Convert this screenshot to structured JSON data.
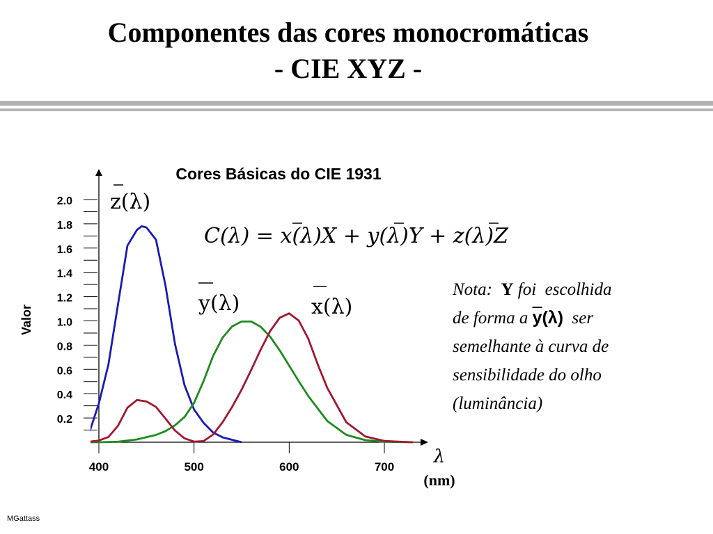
{
  "slide": {
    "title_line1": "Componentes das cores monocromáticas",
    "title_line2": "- CIE XYZ -",
    "footer": "MGattass"
  },
  "formula": "C(λ) = x(λ)X + y(λ)Y + z(λ)Z",
  "note": {
    "prefix": "Nota:",
    "bold_word": "Y",
    "middle": "foi escolhida de forma a",
    "symbol": "y(λ)",
    "rest1": "ser",
    "line3": "semelhante à curva de",
    "line4": "sensibilidade do olho",
    "line5": "(luminância)"
  },
  "chart_data": {
    "type": "line",
    "title": "Cores Básicas do CIE 1931",
    "ylabel": "Valor",
    "xlabel_symbol": "λ",
    "xlabel_unit": "(nm)",
    "x_ticks": [
      400,
      500,
      600,
      700
    ],
    "y_ticks": [
      "0.2",
      "0.4",
      "0.6",
      "0.8",
      "1.0",
      "1.2",
      "1.4",
      "1.6",
      "1.8",
      "2.0"
    ],
    "xlim": [
      390,
      740
    ],
    "ylim": [
      0,
      2.0
    ],
    "series": [
      {
        "name": "z(λ)",
        "color": "#1a1ab8",
        "x": [
          380,
          390,
          400,
          410,
          420,
          430,
          440,
          445,
          450,
          460,
          470,
          480,
          490,
          500,
          510,
          520,
          530,
          540,
          550
        ],
        "y": [
          0.04,
          0.08,
          0.32,
          0.64,
          1.13,
          1.62,
          1.75,
          1.78,
          1.77,
          1.67,
          1.29,
          0.81,
          0.47,
          0.27,
          0.16,
          0.08,
          0.04,
          0.02,
          0.0
        ]
      },
      {
        "name": "y(λ)",
        "color": "#1f8a1f",
        "x": [
          380,
          400,
          420,
          440,
          460,
          470,
          480,
          490,
          500,
          510,
          520,
          530,
          540,
          550,
          560,
          570,
          580,
          590,
          600,
          610,
          620,
          640,
          660,
          680,
          700,
          720,
          730
        ],
        "y": [
          0.0,
          0.0,
          0.004,
          0.023,
          0.06,
          0.091,
          0.139,
          0.208,
          0.323,
          0.503,
          0.71,
          0.862,
          0.954,
          0.995,
          0.995,
          0.952,
          0.87,
          0.757,
          0.631,
          0.503,
          0.381,
          0.175,
          0.061,
          0.017,
          0.004,
          0.001,
          0.0
        ]
      },
      {
        "name": "x(λ)",
        "color": "#a01830",
        "x": [
          380,
          390,
          400,
          410,
          420,
          430,
          440,
          450,
          460,
          470,
          480,
          490,
          500,
          510,
          520,
          530,
          540,
          550,
          560,
          570,
          580,
          590,
          600,
          610,
          620,
          630,
          640,
          660,
          680,
          700,
          720,
          730
        ],
        "y": [
          0.0,
          0.004,
          0.014,
          0.043,
          0.134,
          0.284,
          0.348,
          0.336,
          0.291,
          0.195,
          0.096,
          0.032,
          0.005,
          0.009,
          0.063,
          0.165,
          0.29,
          0.433,
          0.595,
          0.762,
          0.916,
          1.026,
          1.062,
          1.003,
          0.854,
          0.642,
          0.448,
          0.165,
          0.047,
          0.011,
          0.003,
          0.0
        ]
      }
    ]
  }
}
